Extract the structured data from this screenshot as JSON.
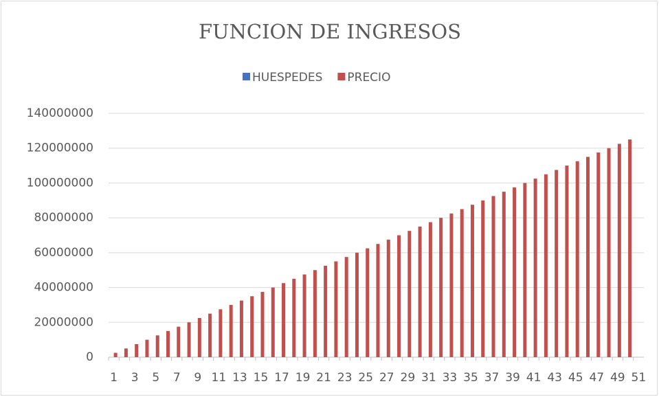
{
  "chart_data": {
    "type": "bar",
    "title": "FUNCION DE INGRESOS",
    "categories": [
      1,
      null,
      3,
      null,
      5,
      null,
      7,
      null,
      9,
      null,
      11,
      null,
      13,
      null,
      15,
      null,
      17,
      null,
      19,
      null,
      21,
      null,
      23,
      null,
      25,
      null,
      27,
      null,
      29,
      null,
      31,
      null,
      33,
      null,
      35,
      null,
      37,
      null,
      39,
      null,
      41,
      null,
      43,
      null,
      45,
      null,
      47,
      null,
      49,
      null,
      51
    ],
    "series": [
      {
        "name": "HUESPEDES",
        "color": "#4472c4",
        "values": [
          0,
          0,
          0,
          0,
          0,
          0,
          0,
          0,
          0,
          0,
          0,
          0,
          0,
          0,
          0,
          0,
          0,
          0,
          0,
          0,
          0,
          0,
          0,
          0,
          0,
          0,
          0,
          0,
          0,
          0,
          0,
          0,
          0,
          0,
          0,
          0,
          0,
          0,
          0,
          0,
          0,
          0,
          0,
          0,
          0,
          0,
          0,
          0,
          0,
          0,
          0
        ]
      },
      {
        "name": "PRECIO",
        "color": "#c0504d",
        "values": [
          2500000,
          5000000,
          7500000,
          10000000,
          12500000,
          15000000,
          17500000,
          20000000,
          22500000,
          25000000,
          27500000,
          30000000,
          32500000,
          35000000,
          37500000,
          40000000,
          42500000,
          45000000,
          47500000,
          50000000,
          52500000,
          55000000,
          57500000,
          60000000,
          62500000,
          65000000,
          67500000,
          70000000,
          72500000,
          75000000,
          77500000,
          80000000,
          82500000,
          85000000,
          87500000,
          90000000,
          92500000,
          95000000,
          97500000,
          100000000,
          102500000,
          105000000,
          107500000,
          110000000,
          112500000,
          115000000,
          117500000,
          120000000,
          122500000,
          125000000,
          null
        ]
      }
    ],
    "ylim": [
      0,
      140000000
    ],
    "yticks": [
      0,
      20000000,
      40000000,
      60000000,
      80000000,
      100000000,
      120000000,
      140000000
    ],
    "grid": true,
    "legend": "top"
  }
}
